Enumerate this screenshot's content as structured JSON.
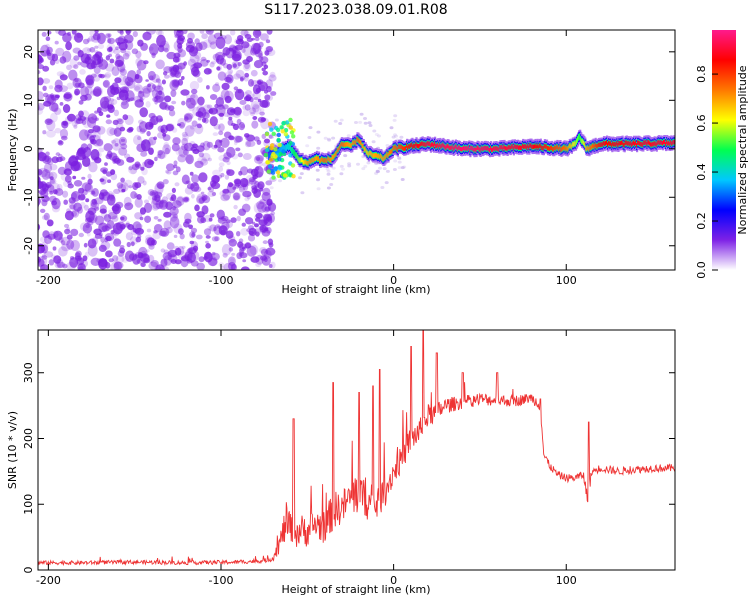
{
  "figure": {
    "title": "S117.2023.038.09.01.R08"
  },
  "chart_data": [
    {
      "type": "heatmap",
      "title": "",
      "xlabel": "Height of straight line (km)",
      "ylabel": "Frequency (Hz)",
      "xlim": [
        -206,
        163
      ],
      "ylim": [
        -25,
        24.5
      ],
      "xticks": [
        -200,
        -100,
        0,
        100
      ],
      "yticks": [
        -20,
        -10,
        0,
        10,
        20
      ],
      "colorbar": {
        "label": "Normalized spectral amplitude",
        "range": [
          0,
          0.98
        ],
        "ticks": [
          0.0,
          0.2,
          0.4,
          0.6,
          0.8
        ],
        "colormap": [
          "#ffffff",
          "#7e22e6",
          "#0000ff",
          "#00c8ff",
          "#00ff50",
          "#ffff00",
          "#ff7800",
          "#ff0000",
          "#ff1a8c"
        ]
      },
      "noise_region_x": [
        -206,
        -72
      ],
      "noise_color": "#7b1fe0",
      "ridge": {
        "x": [
          -72,
          -66,
          -60,
          -55,
          -50,
          -45,
          -40,
          -35,
          -30,
          -25,
          -20,
          -15,
          -10,
          -5,
          0,
          10,
          20,
          40,
          60,
          80,
          100,
          105,
          108,
          112,
          120,
          140,
          163
        ],
        "y": [
          -1.5,
          -0.5,
          0.5,
          -2,
          -3,
          -2,
          -2.5,
          -2,
          1,
          0.5,
          2,
          -1,
          -1.5,
          -2,
          0,
          0.5,
          1,
          0,
          0,
          0.5,
          0,
          0.8,
          2.5,
          0,
          1,
          1,
          1.2
        ],
        "amp": [
          0.3,
          0.35,
          0.4,
          0.55,
          0.7,
          0.7,
          0.75,
          0.7,
          0.75,
          0.7,
          0.75,
          0.65,
          0.7,
          0.7,
          0.75,
          0.85,
          0.9,
          0.95,
          0.92,
          0.88,
          0.75,
          0.6,
          0.5,
          0.7,
          0.85,
          0.88,
          0.9
        ]
      }
    },
    {
      "type": "line",
      "title": "",
      "xlabel": "Height of straight line (km)",
      "ylabel": "SNR (10 * v/v)",
      "xlim": [
        -206,
        163
      ],
      "ylim": [
        0,
        365
      ],
      "xticks": [
        -200,
        -100,
        0,
        100
      ],
      "yticks": [
        0,
        100,
        200,
        300
      ],
      "grid": false,
      "series": [
        {
          "color": "#ee3333",
          "x": [
            -206,
            -180,
            -150,
            -120,
            -90,
            -75,
            -70,
            -66,
            -62,
            -58,
            -55,
            -50,
            -45,
            -40,
            -35,
            -30,
            -25,
            -20,
            -15,
            -10,
            -5,
            0,
            5,
            10,
            15,
            20,
            25,
            30,
            40,
            50,
            60,
            70,
            80,
            85,
            87,
            90,
            95,
            100,
            105,
            110,
            112,
            115,
            120,
            130,
            140,
            150,
            163
          ],
          "y": [
            11,
            11,
            12,
            11,
            12,
            14,
            18,
            40,
            75,
            55,
            60,
            60,
            70,
            65,
            90,
            95,
            110,
            120,
            100,
            100,
            120,
            150,
            170,
            200,
            210,
            235,
            240,
            250,
            255,
            260,
            258,
            257,
            262,
            250,
            175,
            160,
            145,
            140,
            140,
            145,
            110,
            150,
            155,
            150,
            153,
            155,
            155
          ],
          "noise": [
            6,
            6,
            6,
            6,
            6,
            6,
            10,
            30,
            60,
            50,
            50,
            50,
            50,
            50,
            60,
            50,
            60,
            70,
            50,
            50,
            50,
            40,
            40,
            40,
            40,
            35,
            30,
            25,
            20,
            20,
            18,
            18,
            15,
            20,
            20,
            12,
            12,
            12,
            12,
            12,
            30,
            12,
            12,
            12,
            12,
            12,
            12
          ],
          "spikes": [
            [
              -58,
              230
            ],
            [
              -35,
              285
            ],
            [
              -20,
              270
            ],
            [
              -12,
              280
            ],
            [
              -8,
              305
            ],
            [
              10,
              340
            ],
            [
              17,
              365
            ],
            [
              25,
              330
            ],
            [
              40,
              300
            ],
            [
              60,
              300
            ],
            [
              85,
              260
            ],
            [
              113,
              225
            ]
          ]
        }
      ]
    }
  ]
}
